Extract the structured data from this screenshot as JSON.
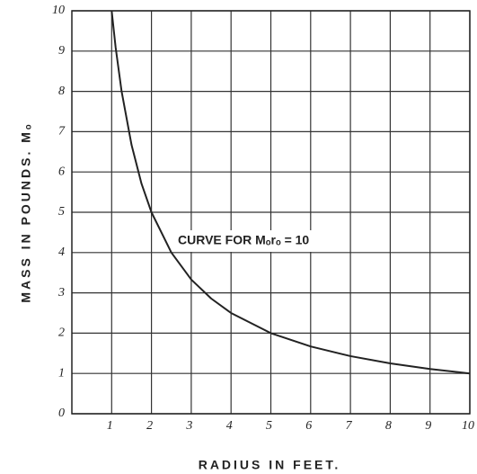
{
  "chart_data": {
    "type": "line",
    "x_label": "RADIUS IN FEET.",
    "y_label": "MASS IN POUNDS. Mₒ",
    "annotation": "CURVE FOR Mₒrₒ = 10",
    "x": [
      1,
      1.1,
      1.25,
      1.5,
      1.75,
      2,
      2.5,
      3,
      3.5,
      4,
      5,
      6,
      7,
      8,
      9,
      10
    ],
    "series": [
      {
        "name": "Mₒrₒ = 10",
        "color": "#222222",
        "values": [
          10,
          9.09,
          8,
          6.67,
          5.71,
          5,
          4,
          3.33,
          2.86,
          2.5,
          2,
          1.67,
          1.43,
          1.25,
          1.11,
          1
        ]
      }
    ],
    "xlim": [
      0,
      10
    ],
    "ylim": [
      0,
      10
    ],
    "xticks": [
      1,
      2,
      3,
      4,
      5,
      6,
      7,
      8,
      9,
      10
    ],
    "yticks": [
      0,
      1,
      2,
      3,
      4,
      5,
      6,
      7,
      8,
      9,
      10
    ],
    "grid": true
  }
}
